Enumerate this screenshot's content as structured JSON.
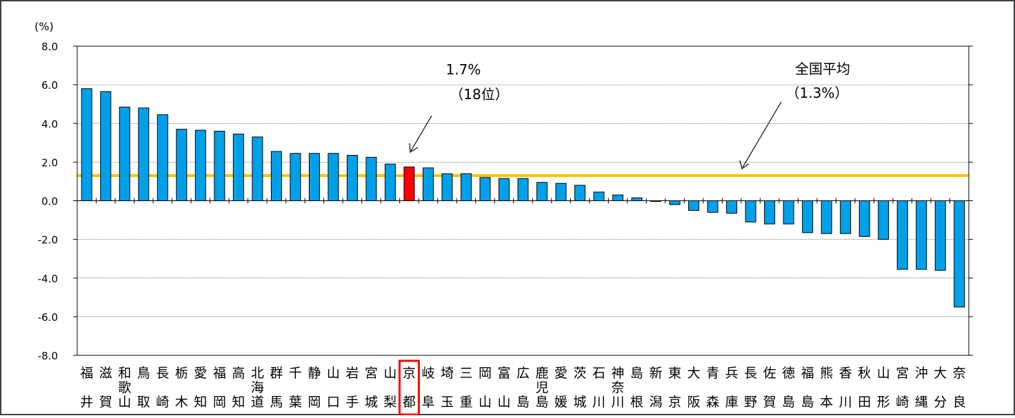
{
  "chart_data": {
    "type": "bar",
    "y_unit_label": "(%)",
    "ylim": [
      -8.0,
      8.0
    ],
    "y_ticks": [
      "8.0",
      "6.0",
      "4.0",
      "2.0",
      "0.0",
      "-2.0",
      "-4.0",
      "-6.0",
      "-8.0"
    ],
    "y_tick_values": [
      8,
      6,
      4,
      2,
      0,
      -2,
      -4,
      -6,
      -8
    ],
    "grid": true,
    "categories": [
      [
        "福",
        "井"
      ],
      [
        "滋",
        "賀"
      ],
      [
        "和",
        "歌",
        "山"
      ],
      [
        "鳥",
        "取"
      ],
      [
        "長",
        "崎"
      ],
      [
        "栃",
        "木"
      ],
      [
        "愛",
        "知"
      ],
      [
        "福",
        "岡"
      ],
      [
        "高",
        "知"
      ],
      [
        "北",
        "海",
        "道"
      ],
      [
        "群",
        "馬"
      ],
      [
        "千",
        "葉"
      ],
      [
        "静",
        "岡"
      ],
      [
        "山",
        "口"
      ],
      [
        "岩",
        "手"
      ],
      [
        "宮",
        "城"
      ],
      [
        "山",
        "梨"
      ],
      [
        "京",
        "都"
      ],
      [
        "岐",
        "阜"
      ],
      [
        "埼",
        "玉"
      ],
      [
        "三",
        "重"
      ],
      [
        "岡",
        "山"
      ],
      [
        "富",
        "山"
      ],
      [
        "広",
        "島"
      ],
      [
        "鹿",
        "児",
        "島"
      ],
      [
        "愛",
        "媛"
      ],
      [
        "茨",
        "城"
      ],
      [
        "石",
        "川"
      ],
      [
        "神",
        "奈",
        "川"
      ],
      [
        "島",
        "根"
      ],
      [
        "新",
        "潟"
      ],
      [
        "東",
        "京"
      ],
      [
        "大",
        "阪"
      ],
      [
        "青",
        "森"
      ],
      [
        "兵",
        "庫"
      ],
      [
        "長",
        "野"
      ],
      [
        "佐",
        "賀"
      ],
      [
        "徳",
        "島"
      ],
      [
        "福",
        "島"
      ],
      [
        "熊",
        "本"
      ],
      [
        "香",
        "川"
      ],
      [
        "秋",
        "田"
      ],
      [
        "山",
        "形"
      ],
      [
        "宮",
        "崎"
      ],
      [
        "沖",
        "縄"
      ],
      [
        "大",
        "分"
      ],
      [
        "奈",
        "良"
      ]
    ],
    "values": [
      5.8,
      5.65,
      4.85,
      4.8,
      4.45,
      3.7,
      3.65,
      3.6,
      3.45,
      3.3,
      2.55,
      2.45,
      2.45,
      2.45,
      2.35,
      2.25,
      1.9,
      1.75,
      1.7,
      1.4,
      1.4,
      1.2,
      1.15,
      1.15,
      0.95,
      0.9,
      0.8,
      0.45,
      0.3,
      0.15,
      0.0,
      -0.2,
      -0.5,
      -0.6,
      -0.65,
      -1.1,
      -1.2,
      -1.2,
      -1.65,
      -1.7,
      -1.7,
      -1.85,
      -2.0,
      -3.55,
      -3.55,
      -3.6,
      -5.5
    ],
    "highlight_index": 17,
    "bar_color": "#00A0E9",
    "highlight_color": "#FF0000",
    "national_average": {
      "value": 1.3,
      "color": "#FFC000",
      "label_line1": "全国平均",
      "label_line2": "（1.3%）"
    },
    "highlight_annotation": {
      "line1": "1.7%",
      "line2": "（18位）"
    }
  }
}
